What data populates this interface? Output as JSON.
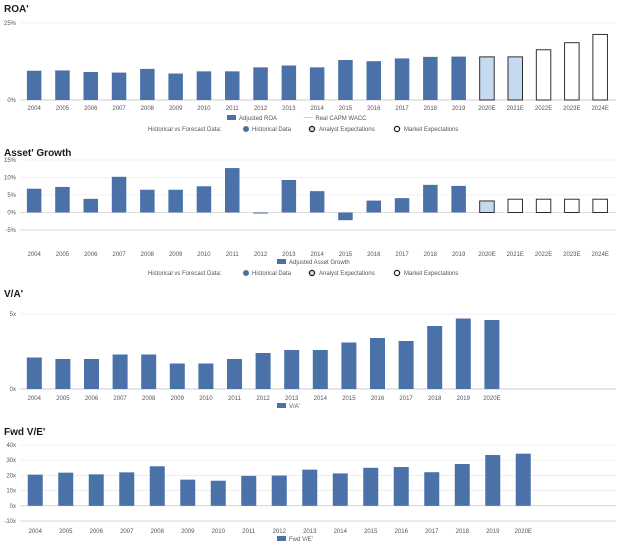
{
  "charts": [
    {
      "title": "ROA'",
      "type": "bar",
      "categories": [
        "2004",
        "2005",
        "2006",
        "2007",
        "2008",
        "2009",
        "2010",
        "2011",
        "2012",
        "2013",
        "2014",
        "2015",
        "2016",
        "2017",
        "2018",
        "2019",
        "2020E",
        "2021E",
        "2022E",
        "2023E",
        "2024E"
      ],
      "series": [
        {
          "name": "Adjusted ROA",
          "values": [
            9.5,
            9.6,
            9.1,
            8.9,
            10.1,
            8.6,
            9.3,
            9.3,
            10.6,
            11.2,
            10.6,
            13.0,
            12.6,
            13.5,
            14.0,
            14.1,
            14.0,
            14.0,
            16.3,
            18.6,
            21.3
          ]
        }
      ],
      "ylim": [
        0,
        25
      ],
      "y_ticks": [
        "25%",
        "0%"
      ],
      "y_tick_values": [
        25,
        0
      ],
      "point_kinds": [
        "hist",
        "hist",
        "hist",
        "hist",
        "hist",
        "hist",
        "hist",
        "hist",
        "hist",
        "hist",
        "hist",
        "hist",
        "hist",
        "hist",
        "hist",
        "hist",
        "analyst",
        "analyst",
        "market",
        "market",
        "market"
      ],
      "legend": [
        "Adjusted ROA",
        "Real CAPM WACC"
      ],
      "kind_legend": [
        "Historical vs Forecast Data:",
        "Historical Data",
        "Analyst Expectations",
        "Market Expectations"
      ]
    },
    {
      "title": "Asset' Growth",
      "type": "bar",
      "categories": [
        "2004",
        "2005",
        "2006",
        "2007",
        "2008",
        "2009",
        "2010",
        "2011",
        "2012",
        "2013",
        "2014",
        "2015",
        "2016",
        "2017",
        "2018",
        "2019",
        "2020E",
        "2021E",
        "2022E",
        "2023E",
        "2024E"
      ],
      "series": [
        {
          "name": "Adjusted Asset Growth",
          "values": [
            6.8,
            7.3,
            3.9,
            10.2,
            6.5,
            6.5,
            7.5,
            12.7,
            -0.3,
            9.3,
            6.1,
            -2.2,
            3.4,
            4.1,
            7.9,
            7.6,
            3.3,
            3.8,
            3.8,
            3.8,
            3.8
          ]
        }
      ],
      "ylim": [
        -5,
        15
      ],
      "y_ticks": [
        "15%",
        "10%",
        "5%",
        "0%",
        "-5%"
      ],
      "y_tick_values": [
        15,
        10,
        5,
        0,
        -5
      ],
      "point_kinds": [
        "hist",
        "hist",
        "hist",
        "hist",
        "hist",
        "hist",
        "hist",
        "hist",
        "hist",
        "hist",
        "hist",
        "hist",
        "hist",
        "hist",
        "hist",
        "hist",
        "analyst",
        "market",
        "market",
        "market",
        "market"
      ],
      "legend": [
        "Adjusted Asset Growth"
      ],
      "kind_legend": [
        "Historical vs Forecast Data:",
        "Historical Data",
        "Analyst Expectations",
        "Market Expectations"
      ]
    },
    {
      "title": "V/A'",
      "type": "bar",
      "categories": [
        "2004",
        "2005",
        "2006",
        "2007",
        "2008",
        "2009",
        "2010",
        "2011",
        "2012",
        "2013",
        "2014",
        "2015",
        "2016",
        "2017",
        "2018",
        "2019",
        "2020E"
      ],
      "series": [
        {
          "name": "V/A'",
          "values": [
            2.1,
            2.0,
            2.0,
            2.3,
            2.3,
            1.7,
            1.7,
            2.0,
            2.4,
            2.6,
            2.6,
            3.1,
            3.4,
            3.2,
            4.2,
            4.7,
            4.6
          ]
        }
      ],
      "ylim": [
        0,
        5
      ],
      "y_ticks": [
        "5x",
        "0x"
      ],
      "y_tick_values": [
        5,
        0
      ],
      "legend": [
        "V/A'"
      ]
    },
    {
      "title": "Fwd V/E'",
      "type": "bar",
      "categories": [
        "2004",
        "2005",
        "2006",
        "2007",
        "2008",
        "2009",
        "2010",
        "2011",
        "2012",
        "2013",
        "2014",
        "2015",
        "2016",
        "2017",
        "2018",
        "2019",
        "2020E"
      ],
      "series": [
        {
          "name": "Fwd V/E'",
          "values": [
            20.5,
            21.8,
            20.7,
            22.0,
            26.0,
            17.2,
            16.5,
            19.7,
            19.9,
            23.8,
            21.3,
            25.0,
            25.5,
            22.1,
            27.5,
            33.4,
            34.3
          ]
        }
      ],
      "ylim": [
        -10,
        40
      ],
      "y_ticks": [
        "40x",
        "30x",
        "20x",
        "10x",
        "0x",
        "-10x"
      ],
      "y_tick_values": [
        40,
        30,
        20,
        10,
        0,
        -10
      ],
      "legend": [
        "Fwd V/E'"
      ]
    }
  ],
  "colors": {
    "hist": "#4a72a8",
    "analyst_fill": "#c5d9f1",
    "market_fill": "#ffffff",
    "forecast_stroke": "#1a1a1a",
    "wacc_line": "#d0d0d0"
  }
}
